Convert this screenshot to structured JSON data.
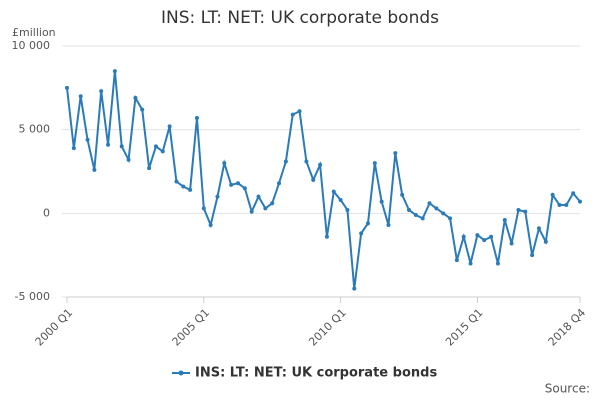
{
  "chart_data": {
    "type": "line",
    "title": "INS: LT: NET: UK corporate bonds",
    "y_unit": "£million",
    "source": "Source:",
    "categories": [
      "2000 Q1",
      null,
      null,
      null,
      null,
      null,
      null,
      null,
      null,
      null,
      null,
      null,
      null,
      null,
      null,
      null,
      null,
      null,
      null,
      null,
      "2005 Q1",
      null,
      null,
      null,
      null,
      null,
      null,
      null,
      null,
      null,
      null,
      null,
      null,
      null,
      null,
      null,
      null,
      null,
      null,
      null,
      "2010 Q1",
      null,
      null,
      null,
      null,
      null,
      null,
      null,
      null,
      null,
      null,
      null,
      null,
      null,
      null,
      null,
      null,
      null,
      null,
      null,
      "2015 Q1",
      null,
      null,
      null,
      null,
      null,
      null,
      null,
      null,
      null,
      null,
      null,
      null,
      null,
      null,
      "2018 Q4"
    ],
    "series": [
      {
        "name": "INS: LT: NET: UK corporate bonds",
        "color": "#2b7bb9",
        "values": [
          7500,
          3900,
          7000,
          4400,
          2600,
          7300,
          4100,
          8500,
          4000,
          3200,
          6900,
          6200,
          2700,
          4000,
          3700,
          5200,
          1900,
          1600,
          1400,
          5700,
          300,
          -700,
          1000,
          3000,
          1700,
          1800,
          1500,
          100,
          1000,
          300,
          600,
          1800,
          3100,
          5900,
          6100,
          3100,
          2000,
          2900,
          -1400,
          1300,
          800,
          200,
          -4500,
          -1200,
          -600,
          3000,
          700,
          -700,
          3600,
          1100,
          200,
          -100,
          -300,
          600,
          300,
          0,
          -300,
          -2800,
          -1400,
          -3000,
          -1300,
          -1600,
          -1400,
          -3000,
          -400,
          -1800,
          200,
          100,
          -2500,
          -900,
          -1700,
          1100,
          500,
          500,
          1200,
          700
        ]
      }
    ],
    "ylim": [
      -5000,
      10000
    ],
    "yticks": [
      {
        "value": -5000,
        "label": "-5 000"
      },
      {
        "value": 0,
        "label": "0"
      },
      {
        "value": 5000,
        "label": "5 000"
      },
      {
        "value": 10000,
        "label": "10 000"
      }
    ],
    "grid": true
  }
}
